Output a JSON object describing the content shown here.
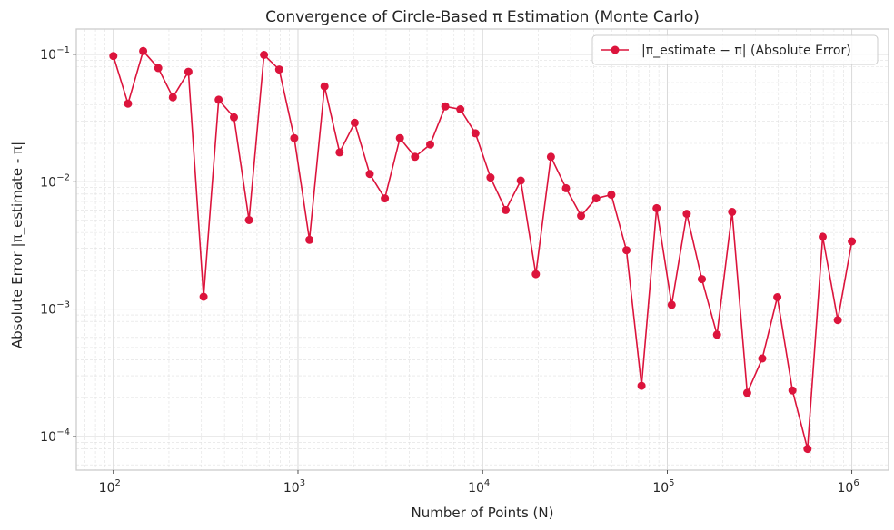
{
  "chart_data": {
    "type": "line",
    "title": "Convergence of Circle-Based π Estimation (Monte Carlo)",
    "xlabel": "Number of Points (N)",
    "ylabel": "Absolute Error |π_estimate - π|",
    "xscale": "log",
    "yscale": "log",
    "xlim": [
      63,
      1580000
    ],
    "ylim": [
      5.45e-05,
      0.158
    ],
    "grid": true,
    "legend_position": "top-right",
    "x_ticks": [
      {
        "value": 100,
        "base": "10",
        "exp": "2"
      },
      {
        "value": 1000,
        "base": "10",
        "exp": "3"
      },
      {
        "value": 10000,
        "base": "10",
        "exp": "4"
      },
      {
        "value": 100000,
        "base": "10",
        "exp": "5"
      },
      {
        "value": 1000000,
        "base": "10",
        "exp": "6"
      }
    ],
    "y_ticks": [
      {
        "value": 0.1,
        "base": "10",
        "exp": "−1"
      },
      {
        "value": 0.01,
        "base": "10",
        "exp": "−2"
      },
      {
        "value": 0.001,
        "base": "10",
        "exp": "−3"
      },
      {
        "value": 0.0001,
        "base": "10",
        "exp": "−4"
      }
    ],
    "series": [
      {
        "name": "|π_estimate − π| (Absolute Error)",
        "color": "#dc143c",
        "marker": "circle",
        "x": [
          100,
          120,
          145,
          175,
          210,
          255,
          308,
          372,
          450,
          543,
          655,
          791,
          955,
          1153,
          1392,
          1680,
          2028,
          2448,
          2955,
          3567,
          4306,
          5199,
          6276,
          7576,
          9145,
          11040,
          13327,
          16088,
          19420,
          23443,
          28300,
          34162,
          41239,
          49782,
          60094,
          72542,
          87568,
          105706,
          127602,
          154033,
          185939,
          224454,
          270947,
          327069,
          394818,
          476598,
          575317,
          694484,
          838335,
          1000000
        ],
        "y": [
          0.097,
          0.041,
          0.106,
          0.078,
          0.046,
          0.073,
          0.00125,
          0.044,
          0.032,
          0.005,
          0.099,
          0.076,
          0.022,
          0.0035,
          0.056,
          0.017,
          0.029,
          0.0115,
          0.0074,
          0.022,
          0.0157,
          0.0196,
          0.039,
          0.037,
          0.024,
          0.0108,
          0.006,
          0.0102,
          0.00188,
          0.0157,
          0.0089,
          0.0054,
          0.0074,
          0.0079,
          0.0029,
          0.00025,
          0.0062,
          0.00108,
          0.0056,
          0.00172,
          0.00063,
          0.0058,
          0.00022,
          0.00041,
          0.00124,
          0.00023,
          8e-05,
          0.0037,
          0.00082,
          0.0034
        ]
      }
    ]
  }
}
